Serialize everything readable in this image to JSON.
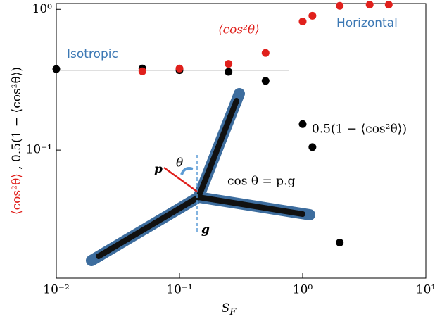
{
  "chart_data": {
    "type": "scatter",
    "xlabel": "S",
    "xlabel_sub": "F",
    "ylabel_parts": [
      "⟨cos²θ⟩",
      " , 0.5(1 − ⟨cos²θ⟩)"
    ],
    "xlog": true,
    "ylog": true,
    "xlim": [
      0.01,
      10
    ],
    "ylim": [
      0.0123,
      1.1
    ],
    "xticks": [
      {
        "value": 0.01,
        "label": "10⁻²"
      },
      {
        "value": 0.1,
        "label": "10⁻¹"
      },
      {
        "value": 1,
        "label": "10⁰"
      },
      {
        "value": 10,
        "label": "10¹"
      }
    ],
    "yticks": [
      {
        "value": 0.1,
        "label": "10⁻¹"
      },
      {
        "value": 1,
        "label": "10⁰"
      }
    ],
    "hline": 0.37,
    "hline_label": "Isotropic",
    "top_label": "Horizontal",
    "series": [
      {
        "name": "⟨cos²θ⟩",
        "color": "#e0201c",
        "x": [
          0.05,
          0.1,
          0.25,
          0.5,
          1,
          1.2,
          2,
          3.5,
          5
        ],
        "values": [
          0.363,
          0.38,
          0.41,
          0.49,
          0.82,
          0.9,
          1.06,
          1.08,
          1.08
        ]
      },
      {
        "name": "0.5(1 − ⟨cos²θ⟩)",
        "color": "#000000",
        "x": [
          0.01,
          0.05,
          0.1,
          0.25,
          0.5,
          1,
          1.2,
          2
        ],
        "values": [
          0.376,
          0.38,
          0.37,
          0.36,
          0.31,
          0.153,
          0.105,
          0.022
        ]
      }
    ],
    "diagram": {
      "p": "p",
      "theta": "θ",
      "g": "g",
      "equation": "cos θ = p.g"
    }
  }
}
